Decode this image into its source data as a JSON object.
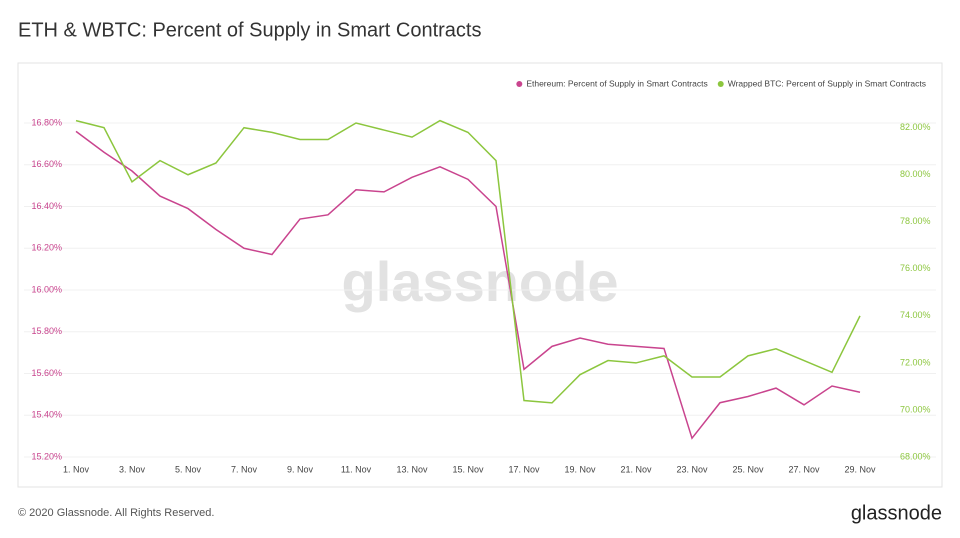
{
  "chart_data": {
    "type": "line",
    "title": "ETH & WBTC: Percent of Supply in Smart Contracts",
    "watermark": "glassnode",
    "footer": "© 2020 Glassnode. All Rights Reserved.",
    "logo": "glassnode",
    "categories": [
      "1. Nov",
      null,
      "3. Nov",
      null,
      "5. Nov",
      null,
      "7. Nov",
      null,
      "9. Nov",
      null,
      "11. Nov",
      null,
      "13. Nov",
      null,
      "15. Nov",
      null,
      "17. Nov",
      null,
      "19. Nov",
      null,
      "21. Nov",
      null,
      "23. Nov",
      null,
      "25. Nov",
      null,
      "27. Nov",
      null,
      "29. Nov"
    ],
    "series": [
      {
        "name": "Ethereum: Percent of Supply in Smart Contracts",
        "color": "#c9448e",
        "axis": "y",
        "values": [
          16.76,
          16.66,
          16.57,
          16.45,
          16.39,
          16.29,
          16.2,
          16.17,
          16.34,
          16.36,
          16.48,
          16.47,
          16.54,
          16.59,
          16.53,
          16.4,
          15.62,
          15.73,
          15.77,
          15.74,
          15.73,
          15.72,
          15.29,
          15.46,
          15.49,
          15.53,
          15.45,
          15.54,
          15.51
        ]
      },
      {
        "name": "Wrapped BTC: Percent of Supply in Smart Contracts",
        "color": "#8cc63e",
        "axis": "y2",
        "values": [
          82.3,
          82.0,
          79.7,
          80.6,
          80.0,
          80.5,
          82.0,
          81.8,
          81.5,
          81.5,
          82.2,
          81.9,
          81.6,
          82.3,
          81.8,
          80.6,
          70.4,
          70.3,
          71.5,
          72.1,
          72.0,
          72.3,
          71.4,
          71.4,
          72.3,
          72.6,
          72.1,
          71.6,
          74.0
        ]
      }
    ],
    "ylim": [
      15.2,
      16.8
    ],
    "yticks": [
      {
        "value": 15.2,
        "label": "15.20%"
      },
      {
        "value": 15.4,
        "label": "15.40%"
      },
      {
        "value": 15.6,
        "label": "15.60%"
      },
      {
        "value": 15.8,
        "label": "15.80%"
      },
      {
        "value": 16.0,
        "label": "16.00%"
      },
      {
        "value": 16.2,
        "label": "16.20%"
      },
      {
        "value": 16.4,
        "label": "16.40%"
      },
      {
        "value": 16.6,
        "label": "16.60%"
      },
      {
        "value": 16.8,
        "label": "16.80%"
      }
    ],
    "y2lim": [
      68,
      82.2
    ],
    "y2ticks": [
      {
        "value": 68,
        "label": "68.00%"
      },
      {
        "value": 70,
        "label": "70.00%"
      },
      {
        "value": 72,
        "label": "72.00%"
      },
      {
        "value": 74,
        "label": "74.00%"
      },
      {
        "value": 76,
        "label": "76.00%"
      },
      {
        "value": 78,
        "label": "78.00%"
      },
      {
        "value": 80,
        "label": "80.00%"
      },
      {
        "value": 82,
        "label": "82.00%"
      }
    ],
    "grid": true,
    "legend": "top-right"
  }
}
